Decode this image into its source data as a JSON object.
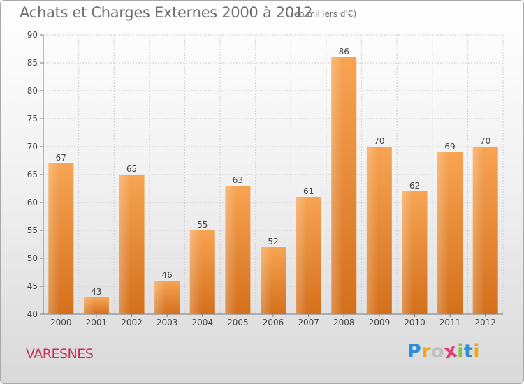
{
  "title": "Achats et Charges Externes 2000 à 2012",
  "subtitle": "(en milliers d'€)",
  "commune": "VARESNES",
  "logo": {
    "letters": [
      "P",
      "r",
      "o",
      "x",
      "i",
      "t",
      "i"
    ],
    "colors": [
      "#2e8fd6",
      "#f0a818",
      "#c0c0c0",
      "#e43a7a",
      "#8bc34a",
      "#2e8fd6",
      "#f0a818"
    ]
  },
  "chart_data": {
    "type": "bar",
    "title": "Achats et Charges Externes 2000 à 2012",
    "subtitle": "(en milliers d'€)",
    "xlabel": "",
    "ylabel": "",
    "categories": [
      "2000",
      "2001",
      "2002",
      "2003",
      "2004",
      "2005",
      "2006",
      "2007",
      "2008",
      "2009",
      "2010",
      "2011",
      "2012"
    ],
    "values": [
      67,
      43,
      65,
      46,
      55,
      63,
      52,
      61,
      86,
      70,
      62,
      69,
      70
    ],
    "ylim": [
      40,
      90
    ],
    "yticks": [
      40,
      45,
      50,
      55,
      60,
      65,
      70,
      75,
      80,
      85,
      90
    ],
    "grid": true,
    "bar_color": "#e98a2c"
  }
}
